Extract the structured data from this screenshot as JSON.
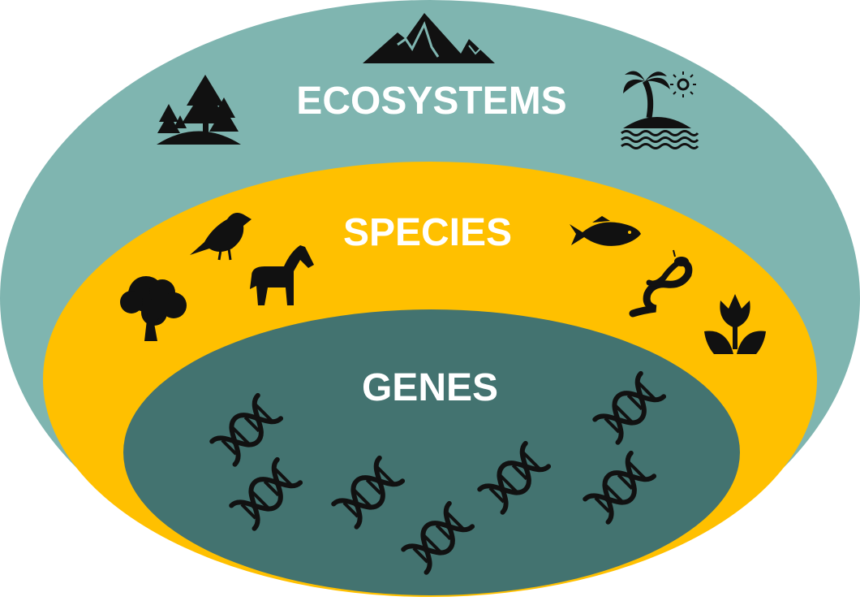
{
  "labels": {
    "ecosystems": "ECOSYSTEMS",
    "species": "SPECIES",
    "genes": "GENES"
  },
  "colors": {
    "ecosystems_fill": "#7fb5b0",
    "species_fill": "#ffc000",
    "genes_fill": "#437370",
    "icon_fill": "#111111",
    "label_text": "#ffffff"
  },
  "icons": {
    "ecosystems": [
      "mountain-icon",
      "forest-icon",
      "island-icon"
    ],
    "species": [
      "bird-icon",
      "horse-icon",
      "tree-icon",
      "fish-icon",
      "snake-icon",
      "tulip-icon"
    ],
    "genes": [
      "dna-icon",
      "dna-icon",
      "dna-icon",
      "dna-icon",
      "dna-icon",
      "dna-icon",
      "dna-icon",
      "dna-icon"
    ]
  }
}
